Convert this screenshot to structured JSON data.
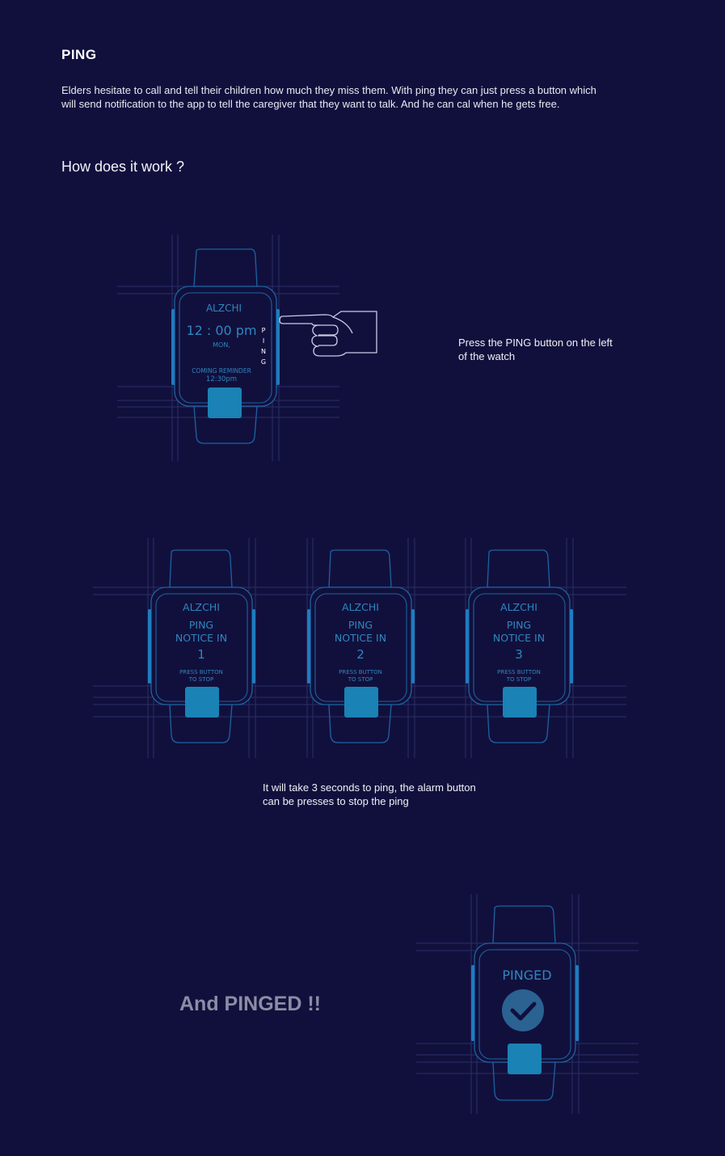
{
  "section": {
    "title": "PING",
    "intro": "Elders hesitate to call and tell their children how much they miss them. With ping they can just press a button which will send notification to the app to tell the caregiver that they want to talk. And he can cal when he gets free.",
    "how_title": "How does it work ?"
  },
  "step1": {
    "watch": {
      "brand": "ALZCHI",
      "time": "12 : 00 pm",
      "day": "MON,",
      "ping_letters": [
        "P",
        "I",
        "N",
        "G"
      ],
      "reminder_label": "COMING REMINDER",
      "reminder_time": "12:30pm"
    },
    "caption": "Press the PING button on the left of the watch",
    "pointer_icon": "pointing-hand-icon"
  },
  "step2": {
    "watches": [
      {
        "brand": "ALZCHI",
        "line1": "PING",
        "line2": "NOTICE IN",
        "count": "1",
        "stop_line1": "PRESS BUTTON",
        "stop_line2": "TO STOP"
      },
      {
        "brand": "ALZCHI",
        "line1": "PING",
        "line2": "NOTICE IN",
        "count": "2",
        "stop_line1": "PRESS BUTTON",
        "stop_line2": "TO STOP"
      },
      {
        "brand": "ALZCHI",
        "line1": "PING",
        "line2": "NOTICE IN",
        "count": "3",
        "stop_line1": "PRESS BUTTON",
        "stop_line2": "TO STOP"
      }
    ],
    "caption": "It will take 3 seconds to ping, the alarm button can be presses to stop the ping"
  },
  "step3": {
    "heading": "And PINGED !!",
    "watch": {
      "status": "PINGED",
      "icon": "checkmark-icon"
    }
  },
  "colors": {
    "background": "#11103d",
    "outline": "#1e62a0",
    "screen_text": "#2f86bd",
    "side_button": "#1f7cc0",
    "alarm_button": "#1a82b5",
    "guide_line": "#2b2e66",
    "heading_grey": "#8c8ca4"
  }
}
